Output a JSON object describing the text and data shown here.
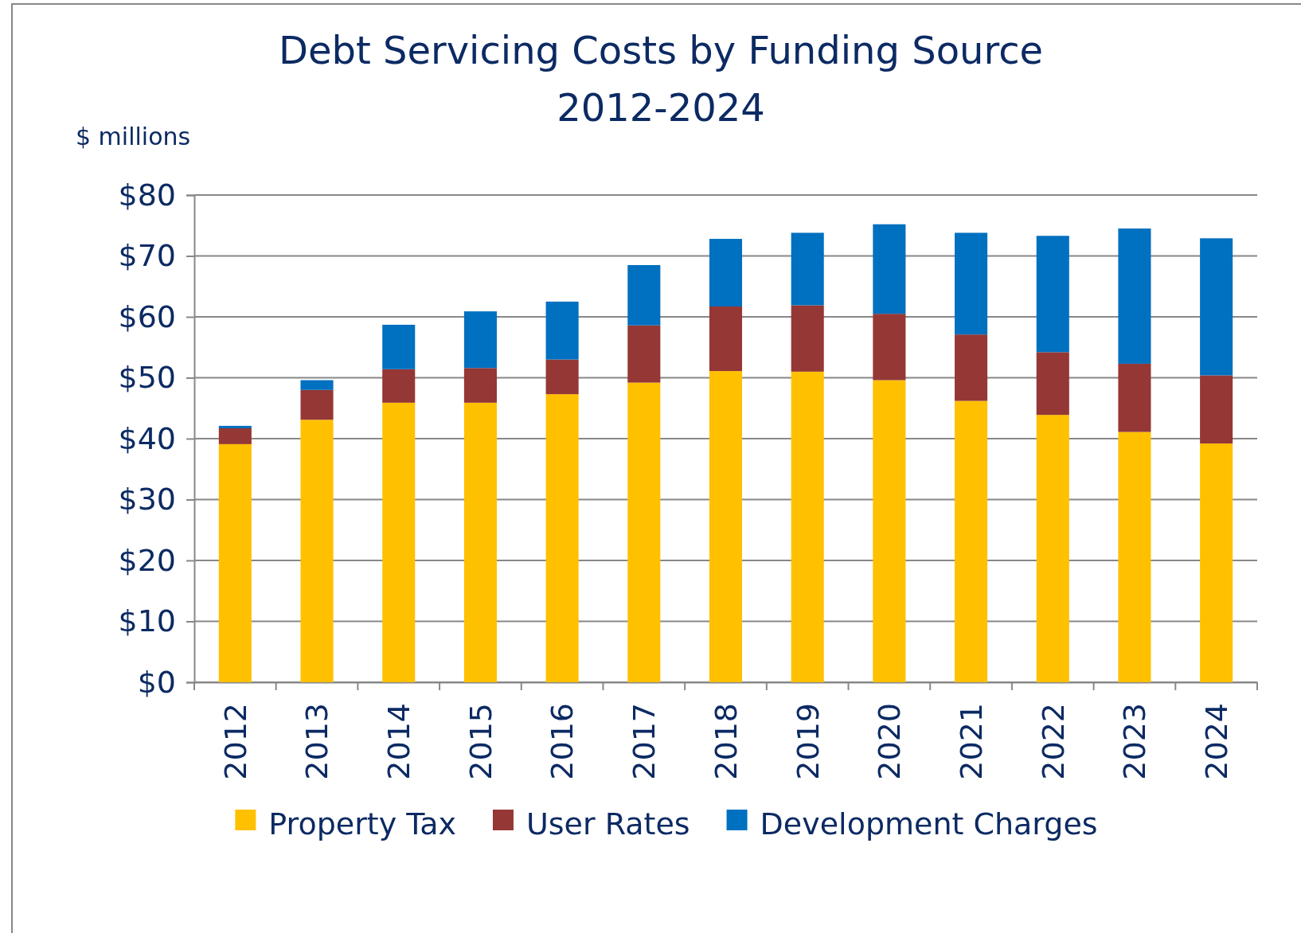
{
  "chart_data": {
    "type": "bar",
    "title": "Debt Servicing Costs by Funding Source\n2012-2024",
    "ylabel": "$ millions",
    "stacked": true,
    "grid": "y",
    "legend": "bottom",
    "categories": [
      "2012",
      "2013",
      "2014",
      "2015",
      "2016",
      "2017",
      "2018",
      "2019",
      "2020",
      "2021",
      "2022",
      "2023",
      "2024"
    ],
    "series": [
      {
        "name": "Property Tax",
        "color": "#ffc000",
        "values": [
          39.1,
          43.1,
          45.9,
          45.9,
          47.3,
          49.2,
          51.1,
          51.0,
          49.6,
          46.2,
          43.9,
          41.1,
          39.2
        ]
      },
      {
        "name": "User Rates",
        "color": "#953735",
        "values": [
          2.6,
          4.9,
          5.5,
          5.7,
          5.7,
          9.4,
          10.6,
          10.9,
          10.9,
          10.9,
          10.3,
          11.2,
          11.2
        ]
      },
      {
        "name": "Development Charges",
        "color": "#0070c0",
        "values": [
          0.4,
          1.6,
          7.3,
          9.3,
          9.5,
          9.9,
          11.1,
          11.9,
          14.7,
          16.7,
          19.1,
          22.2,
          22.5
        ]
      }
    ],
    "ylim": [
      0,
      80
    ],
    "yticks": [
      {
        "value": 0,
        "label": "$0"
      },
      {
        "value": 10,
        "label": "$10"
      },
      {
        "value": 20,
        "label": "$20"
      },
      {
        "value": 30,
        "label": "$30"
      },
      {
        "value": 40,
        "label": "$40"
      },
      {
        "value": 50,
        "label": "$50"
      },
      {
        "value": 60,
        "label": "$60"
      },
      {
        "value": 70,
        "label": "$70"
      },
      {
        "value": 80,
        "label": "$80"
      }
    ]
  }
}
